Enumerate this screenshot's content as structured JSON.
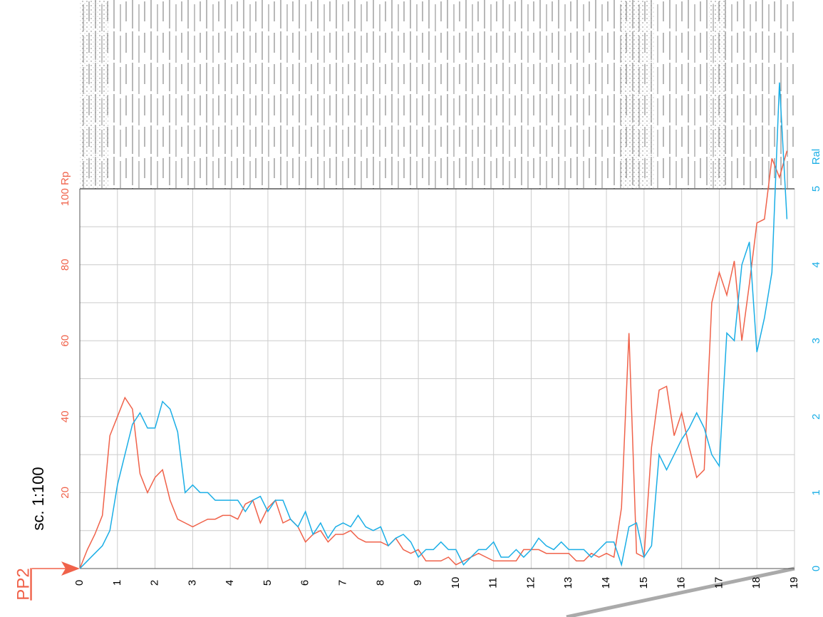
{
  "chart_data": {
    "type": "line",
    "scale_label": "sc. 1:100",
    "point_label": "PP2",
    "y2_label": "Ral",
    "x": [
      0,
      0.2,
      0.4,
      0.6,
      0.8,
      1,
      1.2,
      1.4,
      1.6,
      1.8,
      2,
      2.2,
      2.4,
      2.6,
      2.8,
      3,
      3.2,
      3.4,
      3.6,
      3.8,
      4,
      4.2,
      4.4,
      4.6,
      4.8,
      5,
      5.2,
      5.4,
      5.6,
      5.8,
      6,
      6.2,
      6.4,
      6.6,
      6.8,
      7,
      7.2,
      7.4,
      7.6,
      7.8,
      8,
      8.2,
      8.4,
      8.6,
      8.8,
      9,
      9.2,
      9.4,
      9.6,
      9.8,
      10,
      10.2,
      10.4,
      10.6,
      10.8,
      11,
      11.2,
      11.4,
      11.6,
      11.8,
      12,
      12.2,
      12.4,
      12.6,
      12.8,
      13,
      13.2,
      13.4,
      13.6,
      13.8,
      14,
      14.2,
      14.4,
      14.6,
      14.8,
      15,
      15.2,
      15.4,
      15.6,
      15.8,
      16,
      16.2,
      16.4,
      16.6,
      16.8,
      17,
      17.2,
      17.4,
      17.6,
      17.8,
      18,
      18.2,
      18.4,
      18.6,
      18.8
    ],
    "series": [
      {
        "name": "Rp",
        "color": "#f0624a",
        "values": [
          0,
          5,
          9,
          14,
          35,
          40,
          45,
          42,
          25,
          20,
          24,
          26,
          18,
          13,
          12,
          11,
          12,
          13,
          13,
          14,
          14,
          13,
          17,
          18,
          12,
          16,
          18,
          12,
          13,
          11,
          7,
          9,
          10,
          7,
          9,
          9,
          10,
          8,
          7,
          7,
          7,
          6,
          8,
          5,
          4,
          5,
          2,
          2,
          2,
          3,
          1,
          2,
          3,
          4,
          3,
          2,
          2,
          2,
          2,
          5,
          5,
          5,
          4,
          4,
          4,
          4,
          2,
          2,
          4,
          3,
          4,
          3,
          16,
          62,
          4,
          3,
          32,
          47,
          48,
          35,
          41,
          32,
          24,
          26,
          70,
          78,
          72,
          81,
          60,
          75,
          91,
          92,
          108,
          103,
          110
        ]
      },
      {
        "name": "Ral",
        "color": "#1aaee6",
        "axis": "y2",
        "values": [
          0,
          0.1,
          0.2,
          0.3,
          0.5,
          1.1,
          1.5,
          1.9,
          2.05,
          1.85,
          1.85,
          2.2,
          2.1,
          1.8,
          1,
          1.1,
          1,
          1,
          0.9,
          0.9,
          0.9,
          0.9,
          0.75,
          0.9,
          0.95,
          0.75,
          0.9,
          0.9,
          0.65,
          0.55,
          0.75,
          0.45,
          0.6,
          0.4,
          0.55,
          0.6,
          0.55,
          0.7,
          0.55,
          0.5,
          0.55,
          0.3,
          0.4,
          0.45,
          0.35,
          0.15,
          0.25,
          0.25,
          0.35,
          0.25,
          0.25,
          0.05,
          0.15,
          0.25,
          0.25,
          0.35,
          0.15,
          0.15,
          0.25,
          0.15,
          0.25,
          0.4,
          0.3,
          0.25,
          0.35,
          0.25,
          0.25,
          0.25,
          0.15,
          0.25,
          0.35,
          0.35,
          0.05,
          0.55,
          0.6,
          0.15,
          0.3,
          1.5,
          1.3,
          1.5,
          1.7,
          1.85,
          2.05,
          1.85,
          1.5,
          1.35,
          3.1,
          3,
          4,
          4.3,
          2.85,
          3.3,
          3.9,
          6.4,
          4.6
        ]
      }
    ],
    "xlim": [
      0,
      19
    ],
    "xticks": [
      0,
      1,
      2,
      3,
      4,
      5,
      6,
      7,
      8,
      9,
      10,
      11,
      12,
      13,
      14,
      15,
      16,
      17,
      18,
      19
    ],
    "ylim": [
      0,
      100
    ],
    "yticks": [
      20,
      40,
      60,
      80,
      {
        "value": 100,
        "label": "100 Rp"
      }
    ],
    "y2lim": [
      0,
      5
    ],
    "y2ticks": [
      0,
      1,
      2,
      3,
      4,
      5
    ],
    "grid": true
  }
}
